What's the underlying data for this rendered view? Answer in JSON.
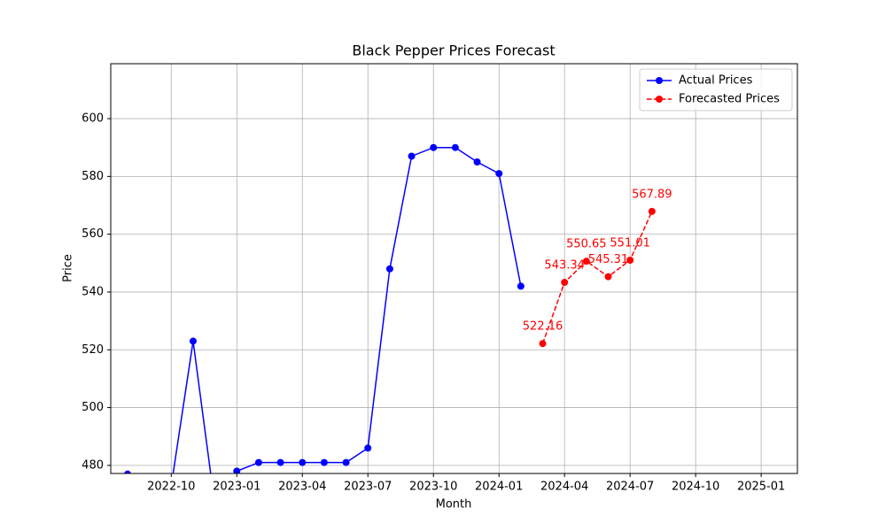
{
  "chart_data": {
    "type": "line",
    "title": "Black Pepper Prices Forecast",
    "xlabel": "Month",
    "ylabel": "Price",
    "series": [
      {
        "name": "Actual Prices",
        "color": "#0000ff",
        "linestyle": "solid",
        "x": [
          "2022-08",
          "2022-09",
          "2022-10",
          "2022-11",
          "2022-12",
          "2023-01",
          "2023-02",
          "2023-03",
          "2023-04",
          "2023-05",
          "2023-06",
          "2023-07",
          "2023-08",
          "2023-09",
          "2023-10",
          "2023-11",
          "2023-12",
          "2024-01",
          "2024-02"
        ],
        "values": [
          477,
          475,
          473,
          523,
          466,
          478,
          481,
          481,
          481,
          481,
          481,
          486,
          548,
          587,
          590,
          590,
          585,
          581,
          542
        ]
      },
      {
        "name": "Forecasted Prices",
        "color": "#ff0000",
        "linestyle": "dashed",
        "data_labels": true,
        "x": [
          "2024-03",
          "2024-04",
          "2024-05",
          "2024-06",
          "2024-07",
          "2024-08"
        ],
        "values": [
          522.16,
          543.34,
          550.65,
          545.31,
          551.01,
          567.89
        ]
      }
    ],
    "xlim": [
      "2022-07-08",
      "2025-02-21"
    ],
    "xticks": [
      "2022-10",
      "2023-01",
      "2023-04",
      "2023-07",
      "2023-10",
      "2024-01",
      "2024-04",
      "2024-07",
      "2024-10",
      "2025-01"
    ],
    "ylim": [
      477.2,
      619
    ],
    "yticks": [
      480,
      500,
      520,
      540,
      560,
      580,
      600
    ],
    "grid": true,
    "legend": "upper right"
  }
}
